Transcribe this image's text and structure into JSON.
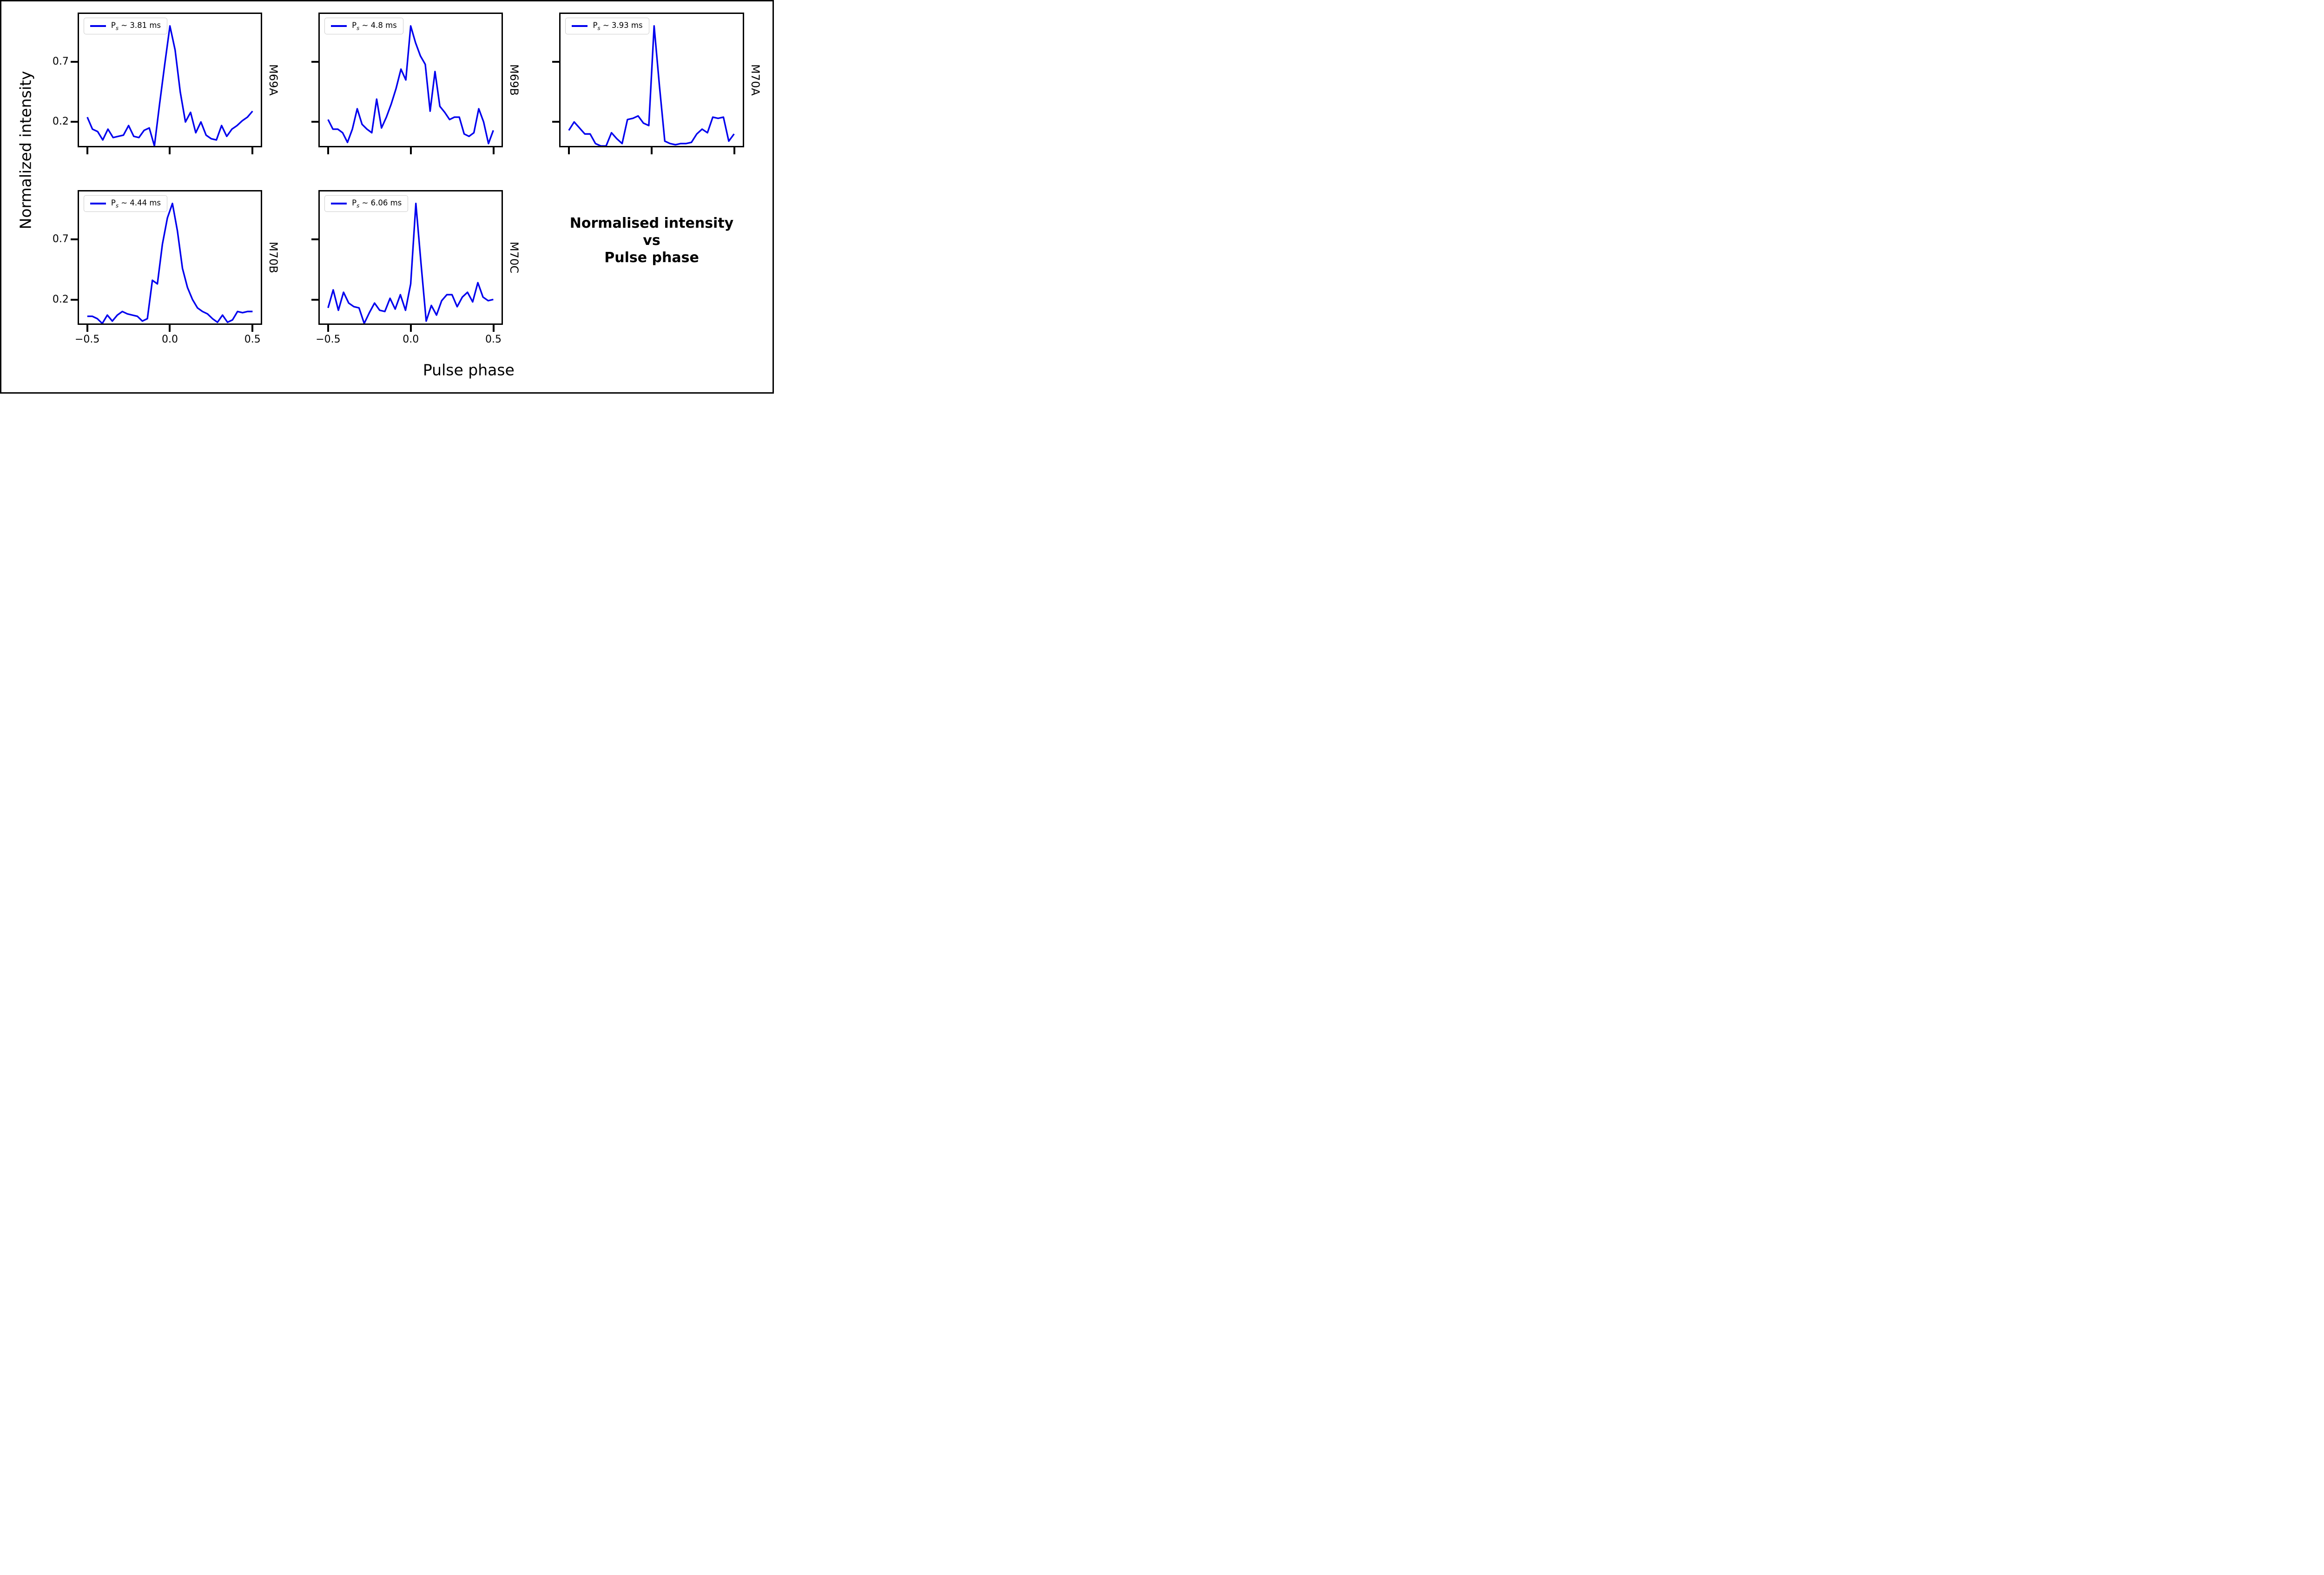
{
  "figure": {
    "supylabel": "Normalized intensity",
    "supxlabel": "Pulse phase",
    "annotation": {
      "line1": "Normalised intensity",
      "line2": "vs",
      "line3": "Pulse phase"
    },
    "line_color": "#0000ee",
    "legend_border_color": "#cccccc",
    "frame_color": "#000000"
  },
  "axes": {
    "xlim": [
      -0.55,
      0.55
    ],
    "ylim": [
      0,
      1.1
    ],
    "grid": false,
    "legend_position": "upper left",
    "xticks": [
      {
        "value": -0.5,
        "label": "−0.5"
      },
      {
        "value": 0.0,
        "label": "0.0"
      },
      {
        "value": 0.5,
        "label": "0.5"
      }
    ],
    "yticks": [
      {
        "value": 0.7,
        "label": "0.7"
      },
      {
        "value": 0.2,
        "label": "0.2"
      }
    ]
  },
  "chart_data": [
    {
      "type": "line",
      "name": "M69A",
      "legend": {
        "prefix": "P",
        "sub": "s",
        "rest": " ~ 3.81 ms"
      },
      "x": [
        -0.5,
        -0.4688,
        -0.4375,
        -0.4063,
        -0.375,
        -0.3438,
        -0.3125,
        -0.2813,
        -0.25,
        -0.2188,
        -0.1875,
        -0.1563,
        -0.125,
        -0.0938,
        -0.0625,
        -0.0313,
        0,
        0.0313,
        0.0625,
        0.0938,
        0.125,
        0.1563,
        0.1875,
        0.2188,
        0.25,
        0.2813,
        0.3125,
        0.3438,
        0.375,
        0.4063,
        0.4375,
        0.4688,
        0.5
      ],
      "y": [
        0.24,
        0.14,
        0.12,
        0.05,
        0.14,
        0.07,
        0.08,
        0.09,
        0.17,
        0.08,
        0.07,
        0.13,
        0.15,
        0.0,
        0.35,
        0.68,
        1.0,
        0.8,
        0.45,
        0.2,
        0.28,
        0.11,
        0.2,
        0.09,
        0.06,
        0.05,
        0.17,
        0.08,
        0.14,
        0.17,
        0.21,
        0.24,
        0.29
      ]
    },
    {
      "type": "line",
      "name": "M69B",
      "legend": {
        "prefix": "P",
        "sub": "s",
        "rest": " ~ 4.8 ms"
      },
      "x": [
        -0.5,
        -0.4706,
        -0.4412,
        -0.4118,
        -0.3824,
        -0.3529,
        -0.3235,
        -0.2941,
        -0.2647,
        -0.2353,
        -0.2059,
        -0.1765,
        -0.1471,
        -0.1176,
        -0.0882,
        -0.0588,
        -0.0294,
        0,
        0.0294,
        0.0588,
        0.0882,
        0.1176,
        0.1471,
        0.1765,
        0.2059,
        0.2353,
        0.2647,
        0.2941,
        0.3235,
        0.3529,
        0.3824,
        0.4118,
        0.4412,
        0.4706,
        0.5
      ],
      "y": [
        0.22,
        0.14,
        0.14,
        0.11,
        0.03,
        0.14,
        0.31,
        0.18,
        0.14,
        0.11,
        0.39,
        0.15,
        0.24,
        0.35,
        0.48,
        0.64,
        0.55,
        1.0,
        0.86,
        0.75,
        0.68,
        0.29,
        0.62,
        0.33,
        0.28,
        0.22,
        0.24,
        0.24,
        0.1,
        0.08,
        0.11,
        0.31,
        0.2,
        0.02,
        0.13
      ]
    },
    {
      "type": "line",
      "name": "M70A",
      "legend": {
        "prefix": "P",
        "sub": "s",
        "rest": " ~ 3.93 ms"
      },
      "x": [
        -0.5,
        -0.4677,
        -0.4355,
        -0.4032,
        -0.371,
        -0.3387,
        -0.3065,
        -0.2742,
        -0.2419,
        -0.2097,
        -0.1774,
        -0.1452,
        -0.1129,
        -0.0806,
        -0.0484,
        -0.0161,
        0.0161,
        0.0484,
        0.0806,
        0.1129,
        0.1452,
        0.1774,
        0.2097,
        0.2419,
        0.2742,
        0.3065,
        0.3387,
        0.371,
        0.4032,
        0.4355,
        0.4677,
        0.5
      ],
      "y": [
        0.13,
        0.2,
        0.15,
        0.1,
        0.1,
        0.02,
        0.0,
        0.0,
        0.11,
        0.06,
        0.02,
        0.22,
        0.23,
        0.25,
        0.19,
        0.17,
        1.0,
        0.5,
        0.04,
        0.02,
        0.01,
        0.02,
        0.02,
        0.03,
        0.1,
        0.14,
        0.11,
        0.24,
        0.23,
        0.24,
        0.04,
        0.1
      ]
    },
    {
      "type": "line",
      "name": "M70B",
      "legend": {
        "prefix": "P",
        "sub": "s",
        "rest": " ~ 4.44 ms"
      },
      "x": [
        -0.5,
        -0.4697,
        -0.4394,
        -0.4091,
        -0.3788,
        -0.3485,
        -0.3182,
        -0.2879,
        -0.2576,
        -0.2273,
        -0.197,
        -0.1667,
        -0.1364,
        -0.1061,
        -0.0758,
        -0.0455,
        -0.0152,
        0.0152,
        0.0455,
        0.0758,
        0.1061,
        0.1364,
        0.1667,
        0.197,
        0.2273,
        0.2576,
        0.2879,
        0.3182,
        0.3485,
        0.3788,
        0.4091,
        0.4394,
        0.4697,
        0.5
      ],
      "y": [
        0.06,
        0.06,
        0.04,
        0.0,
        0.07,
        0.02,
        0.07,
        0.1,
        0.08,
        0.07,
        0.06,
        0.02,
        0.04,
        0.36,
        0.33,
        0.66,
        0.88,
        1.0,
        0.77,
        0.46,
        0.3,
        0.2,
        0.13,
        0.1,
        0.08,
        0.04,
        0.01,
        0.07,
        0.01,
        0.03,
        0.1,
        0.09,
        0.1,
        0.1
      ]
    },
    {
      "type": "line",
      "name": "M70C",
      "legend": {
        "prefix": "P",
        "sub": "s",
        "rest": " ~ 6.06 ms"
      },
      "x": [
        -0.5,
        -0.4688,
        -0.4375,
        -0.4063,
        -0.375,
        -0.3438,
        -0.3125,
        -0.2813,
        -0.25,
        -0.2188,
        -0.1875,
        -0.1563,
        -0.125,
        -0.0938,
        -0.0625,
        -0.0313,
        0,
        0.0313,
        0.0625,
        0.0938,
        0.125,
        0.1563,
        0.1875,
        0.2188,
        0.25,
        0.2813,
        0.3125,
        0.3438,
        0.375,
        0.4063,
        0.4375,
        0.4688,
        0.5
      ],
      "y": [
        0.13,
        0.28,
        0.11,
        0.26,
        0.17,
        0.14,
        0.13,
        0.0,
        0.09,
        0.17,
        0.11,
        0.1,
        0.21,
        0.12,
        0.24,
        0.11,
        0.33,
        1.0,
        0.5,
        0.02,
        0.15,
        0.07,
        0.19,
        0.24,
        0.24,
        0.14,
        0.22,
        0.26,
        0.18,
        0.34,
        0.22,
        0.19,
        0.2
      ]
    }
  ]
}
